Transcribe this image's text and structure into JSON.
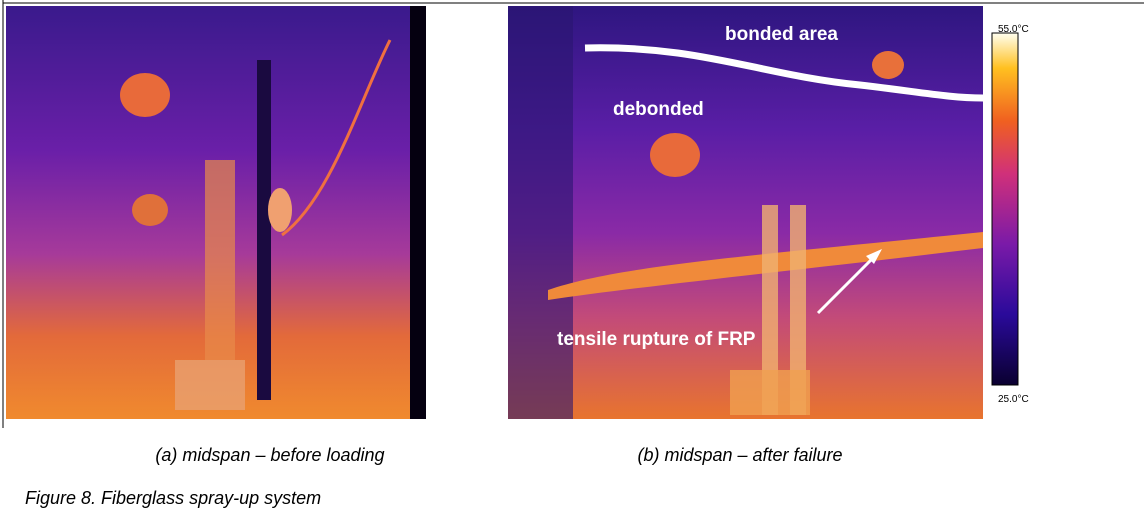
{
  "figure": {
    "panels": [
      {
        "caption": "(a) midspan – before loading"
      },
      {
        "caption": "(b) midspan – after failure",
        "annotations": [
          "bonded area",
          "debonded",
          "tensile rupture of FRP"
        ]
      }
    ],
    "colorbar": {
      "max_label": "55.0°C",
      "min_label": "25.0°C"
    },
    "caption": "Figure 8. Fiberglass spray-up system"
  }
}
